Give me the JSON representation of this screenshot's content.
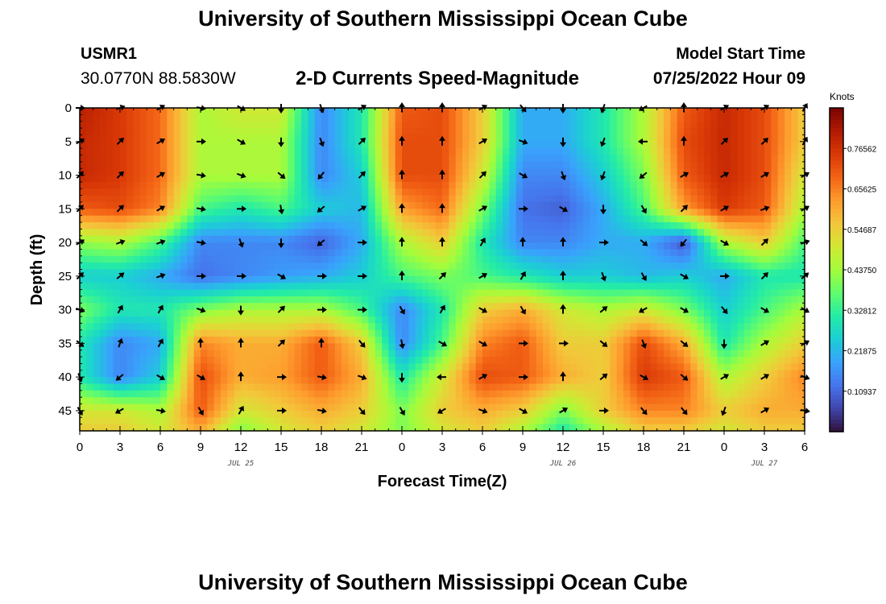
{
  "header": {
    "title": "University of Southern Mississippi Ocean Cube",
    "station_id": "USMR1",
    "coords": "30.0770N  88.5830W",
    "model_start_label": "Model Start Time",
    "model_start_value": "07/25/2022 Hour 09"
  },
  "footer": {
    "title": "University of Southern Mississippi Ocean Cube"
  },
  "chart_data": {
    "type": "heatmap",
    "title": "2-D Currents Speed-Magnitude",
    "xlabel": "Forecast Time(Z)",
    "ylabel": "Depth (ft)",
    "x_ticks": [
      "0",
      "3",
      "6",
      "9",
      "12",
      "15",
      "18",
      "21",
      "0",
      "3",
      "6",
      "9",
      "12",
      "15",
      "18",
      "21",
      "0",
      "3",
      "6"
    ],
    "x_range_hours": [
      0,
      54
    ],
    "date_labels": [
      {
        "label": "JUL 25",
        "hour": 12
      },
      {
        "label": "JUL 26",
        "hour": 36
      },
      {
        "label": "JUL 27",
        "hour": 51
      }
    ],
    "y_ticks": [
      0,
      5,
      10,
      15,
      20,
      25,
      30,
      35,
      40,
      45
    ],
    "y_range": [
      0,
      48
    ],
    "colorbar": {
      "title": "Knots",
      "ticks": [
        "0.10937",
        "0.21875",
        "0.32812",
        "0.43750",
        "0.54687",
        "0.65625",
        "0.76562"
      ],
      "range": [
        0,
        0.875
      ],
      "colors": [
        "#30123b",
        "#4145ab",
        "#4675ed",
        "#39a2fc",
        "#1bcfd4",
        "#24eca6",
        "#61fc6c",
        "#a4fc3b",
        "#d1e834",
        "#f3c63a",
        "#fe9b2d",
        "#f36315",
        "#d93806",
        "#b11901",
        "#7a0402"
      ]
    },
    "speed_anchors": {
      "hours": [
        0,
        3,
        6,
        9,
        12,
        15,
        18,
        21,
        24,
        27,
        30,
        33,
        36,
        39,
        42,
        45,
        48,
        51,
        54
      ],
      "depths": [
        0,
        5,
        10,
        15,
        20,
        25,
        30,
        35,
        40,
        45,
        48
      ],
      "values": [
        [
          0.8,
          0.75,
          0.68,
          0.45,
          0.5,
          0.5,
          0.15,
          0.3,
          0.7,
          0.72,
          0.55,
          0.2,
          0.2,
          0.3,
          0.45,
          0.7,
          0.78,
          0.72,
          0.55
        ],
        [
          0.78,
          0.75,
          0.68,
          0.45,
          0.45,
          0.45,
          0.15,
          0.3,
          0.72,
          0.72,
          0.55,
          0.2,
          0.2,
          0.3,
          0.45,
          0.72,
          0.78,
          0.72,
          0.55
        ],
        [
          0.78,
          0.75,
          0.68,
          0.45,
          0.45,
          0.45,
          0.15,
          0.25,
          0.72,
          0.72,
          0.5,
          0.15,
          0.15,
          0.25,
          0.4,
          0.7,
          0.78,
          0.72,
          0.5
        ],
        [
          0.7,
          0.72,
          0.65,
          0.35,
          0.3,
          0.35,
          0.25,
          0.22,
          0.62,
          0.68,
          0.4,
          0.12,
          0.1,
          0.2,
          0.35,
          0.62,
          0.75,
          0.7,
          0.45
        ],
        [
          0.42,
          0.45,
          0.35,
          0.15,
          0.15,
          0.15,
          0.1,
          0.2,
          0.45,
          0.55,
          0.3,
          0.15,
          0.15,
          0.2,
          0.2,
          0.08,
          0.45,
          0.55,
          0.35
        ],
        [
          0.25,
          0.25,
          0.2,
          0.12,
          0.15,
          0.18,
          0.2,
          0.25,
          0.35,
          0.4,
          0.35,
          0.3,
          0.25,
          0.25,
          0.22,
          0.25,
          0.2,
          0.3,
          0.3
        ],
        [
          0.4,
          0.3,
          0.3,
          0.4,
          0.45,
          0.45,
          0.45,
          0.35,
          0.15,
          0.3,
          0.55,
          0.6,
          0.5,
          0.45,
          0.5,
          0.4,
          0.25,
          0.35,
          0.45
        ],
        [
          0.3,
          0.15,
          0.2,
          0.65,
          0.6,
          0.6,
          0.7,
          0.55,
          0.15,
          0.35,
          0.65,
          0.7,
          0.55,
          0.55,
          0.72,
          0.6,
          0.3,
          0.45,
          0.55
        ],
        [
          0.3,
          0.15,
          0.25,
          0.72,
          0.6,
          0.62,
          0.7,
          0.6,
          0.3,
          0.5,
          0.72,
          0.7,
          0.6,
          0.55,
          0.75,
          0.7,
          0.45,
          0.55,
          0.65
        ],
        [
          0.5,
          0.5,
          0.45,
          0.7,
          0.5,
          0.55,
          0.6,
          0.55,
          0.4,
          0.55,
          0.6,
          0.55,
          0.4,
          0.55,
          0.65,
          0.65,
          0.55,
          0.6,
          0.6
        ],
        [
          0.55,
          0.55,
          0.5,
          0.6,
          0.4,
          0.5,
          0.55,
          0.5,
          0.4,
          0.5,
          0.55,
          0.45,
          0.3,
          0.45,
          0.55,
          0.55,
          0.5,
          0.55,
          0.55
        ]
      ]
    },
    "vectors": {
      "hours": [
        0,
        3,
        6,
        9,
        12,
        15,
        18,
        21,
        24,
        27,
        30,
        33,
        36,
        39,
        42,
        45,
        48,
        51,
        54
      ],
      "depths": [
        0,
        5,
        10,
        15,
        20,
        25,
        30,
        35,
        40,
        45
      ],
      "direction_deg": [
        [
          90,
          70,
          60,
          100,
          120,
          180,
          160,
          60,
          0,
          0,
          60,
          140,
          180,
          200,
          240,
          0,
          60,
          60,
          30
        ],
        [
          60,
          45,
          60,
          90,
          120,
          180,
          160,
          45,
          0,
          0,
          60,
          110,
          180,
          200,
          270,
          0,
          45,
          45,
          30
        ],
        [
          45,
          45,
          60,
          100,
          110,
          130,
          220,
          45,
          0,
          0,
          45,
          120,
          160,
          200,
          230,
          60,
          60,
          60,
          60
        ],
        [
          45,
          45,
          60,
          100,
          90,
          170,
          230,
          60,
          0,
          0,
          60,
          90,
          120,
          180,
          150,
          45,
          60,
          70,
          60
        ],
        [
          60,
          70,
          70,
          100,
          160,
          180,
          230,
          90,
          0,
          0,
          30,
          0,
          0,
          90,
          130,
          220,
          120,
          45,
          70
        ],
        [
          45,
          50,
          70,
          90,
          90,
          120,
          90,
          90,
          0,
          45,
          60,
          30,
          0,
          160,
          150,
          120,
          90,
          45,
          50
        ],
        [
          110,
          30,
          30,
          110,
          180,
          45,
          90,
          90,
          150,
          30,
          120,
          150,
          0,
          50,
          240,
          120,
          140,
          120,
          120
        ],
        [
          130,
          20,
          30,
          0,
          0,
          45,
          0,
          140,
          170,
          120,
          120,
          90,
          90,
          130,
          160,
          130,
          180,
          60,
          60
        ],
        [
          160,
          230,
          120,
          120,
          0,
          90,
          100,
          110,
          180,
          270,
          60,
          90,
          0,
          50,
          120,
          130,
          60,
          60,
          110
        ],
        [
          150,
          240,
          100,
          150,
          30,
          90,
          100,
          140,
          150,
          240,
          110,
          120,
          60,
          90,
          140,
          140,
          200,
          60,
          100
        ]
      ]
    }
  }
}
